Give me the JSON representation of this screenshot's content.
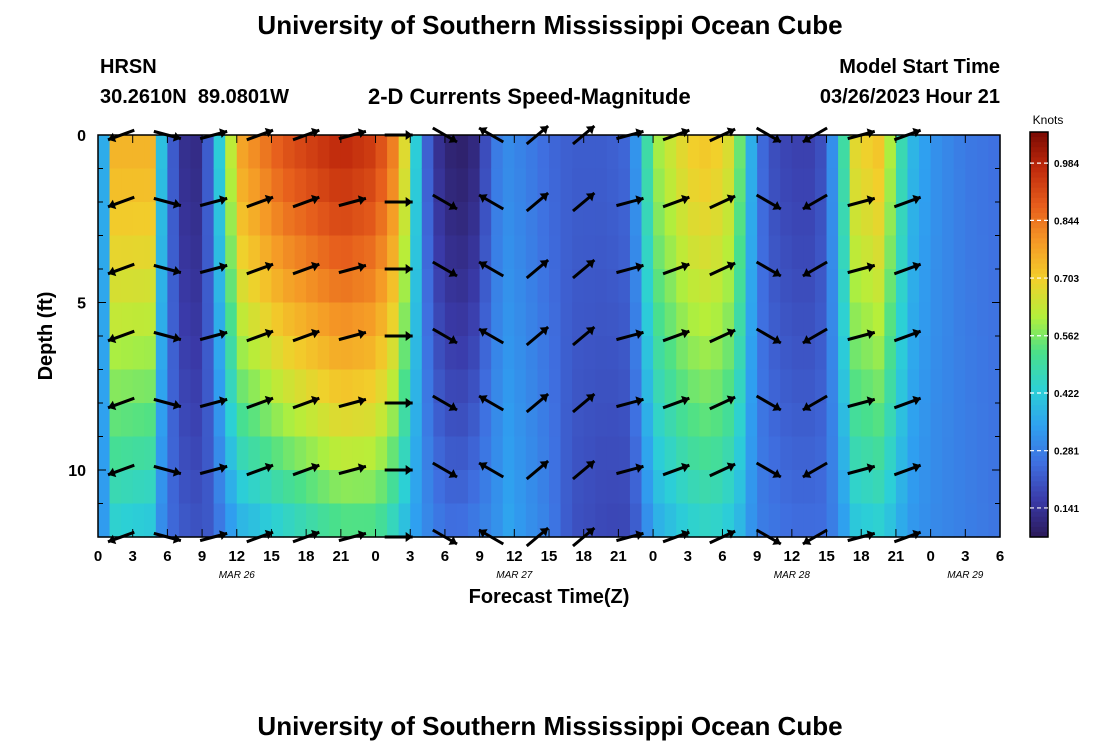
{
  "page_title": "University of Southern Mississippi Ocean Cube",
  "station": {
    "name": "HRSN",
    "coords": "30.2610N  89.0801W"
  },
  "chart_title": "2-D Currents Speed-Magnitude",
  "model_start": {
    "label": "Model Start Time",
    "value": "03/26/2023 Hour 21"
  },
  "footer_title": "University of Southern Mississippi Ocean Cube",
  "colors": {
    "colormap": [
      "#2b1a5a",
      "#3a3aa8",
      "#3f6fe0",
      "#2fa0f0",
      "#2cd0d6",
      "#4ae08a",
      "#b5ef3a",
      "#f2cf2b",
      "#f59a26",
      "#e65d1c",
      "#c02a0c",
      "#7a0a03"
    ]
  },
  "chart_data": {
    "type": "heatmap",
    "xlabel": "Forecast Time(Z)",
    "ylabel": "Depth (ft)",
    "x_tick_labels": [
      "0",
      "3",
      "6",
      "9",
      "12",
      "15",
      "18",
      "21",
      "0",
      "3",
      "6",
      "9",
      "12",
      "15",
      "18",
      "21",
      "0",
      "3",
      "6",
      "9",
      "12",
      "15",
      "18",
      "21",
      "0",
      "3",
      "6"
    ],
    "x_hours_range": [
      0,
      78
    ],
    "date_labels": [
      {
        "text": "MAR 26",
        "hour": 12
      },
      {
        "text": "MAR 27",
        "hour": 36
      },
      {
        "text": "MAR 28",
        "hour": 60
      },
      {
        "text": "MAR 29",
        "hour": 75
      }
    ],
    "y_ticks": [
      "0",
      "5",
      "10"
    ],
    "y_range": [
      0,
      12
    ],
    "colorbar": {
      "label": "Knots",
      "ticks": [
        "0.984",
        "0.844",
        "0.703",
        "0.562",
        "0.422",
        "0.281",
        "0.141"
      ],
      "range": [
        0.07,
        1.06
      ]
    },
    "speed_profile_surface": [
      [
        0,
        0.3
      ],
      [
        0.8,
        0.4
      ],
      [
        1.5,
        0.75
      ],
      [
        4.5,
        0.75
      ],
      [
        5.5,
        0.4
      ],
      [
        6.2,
        0.25
      ],
      [
        7,
        0.16
      ],
      [
        8,
        0.1
      ],
      [
        9,
        0.14
      ],
      [
        10,
        0.3
      ],
      [
        11,
        0.55
      ],
      [
        12.5,
        0.78
      ],
      [
        16,
        0.9
      ],
      [
        21,
        0.98
      ],
      [
        24,
        0.94
      ],
      [
        26,
        0.8
      ],
      [
        27,
        0.55
      ],
      [
        28,
        0.3
      ],
      [
        29,
        0.15
      ],
      [
        31,
        0.08
      ],
      [
        33,
        0.12
      ],
      [
        34,
        0.26
      ],
      [
        35.5,
        0.3
      ],
      [
        37,
        0.28
      ],
      [
        39,
        0.24
      ],
      [
        41,
        0.22
      ],
      [
        44,
        0.22
      ],
      [
        46,
        0.24
      ],
      [
        47,
        0.4
      ],
      [
        48,
        0.58
      ],
      [
        51,
        0.7
      ],
      [
        53,
        0.72
      ],
      [
        55,
        0.65
      ],
      [
        56,
        0.45
      ],
      [
        57,
        0.28
      ],
      [
        58,
        0.2
      ],
      [
        60,
        0.17
      ],
      [
        62,
        0.17
      ],
      [
        63,
        0.22
      ],
      [
        64,
        0.4
      ],
      [
        65.5,
        0.68
      ],
      [
        67.5,
        0.72
      ],
      [
        69,
        0.55
      ],
      [
        70,
        0.4
      ],
      [
        72,
        0.32
      ],
      [
        75,
        0.27
      ],
      [
        78,
        0.25
      ]
    ],
    "speed_profile_deep": [
      [
        0,
        0.28
      ],
      [
        0.8,
        0.36
      ],
      [
        1.5,
        0.42
      ],
      [
        4.5,
        0.4
      ],
      [
        5.5,
        0.3
      ],
      [
        6.2,
        0.25
      ],
      [
        7,
        0.22
      ],
      [
        9,
        0.2
      ],
      [
        10,
        0.22
      ],
      [
        11,
        0.3
      ],
      [
        12.5,
        0.36
      ],
      [
        16,
        0.42
      ],
      [
        21,
        0.5
      ],
      [
        24,
        0.5
      ],
      [
        26,
        0.42
      ],
      [
        27,
        0.35
      ],
      [
        28,
        0.32
      ],
      [
        29,
        0.28
      ],
      [
        31,
        0.25
      ],
      [
        34,
        0.3
      ],
      [
        35.5,
        0.35
      ],
      [
        37,
        0.32
      ],
      [
        39,
        0.28
      ],
      [
        41,
        0.2
      ],
      [
        44,
        0.18
      ],
      [
        46,
        0.18
      ],
      [
        47,
        0.25
      ],
      [
        48,
        0.35
      ],
      [
        51,
        0.42
      ],
      [
        53,
        0.44
      ],
      [
        55,
        0.4
      ],
      [
        56,
        0.35
      ],
      [
        57,
        0.28
      ],
      [
        60,
        0.25
      ],
      [
        63,
        0.25
      ],
      [
        64,
        0.3
      ],
      [
        65.5,
        0.4
      ],
      [
        67.5,
        0.42
      ],
      [
        69,
        0.38
      ],
      [
        70,
        0.33
      ],
      [
        72,
        0.3
      ],
      [
        75,
        0.28
      ],
      [
        78,
        0.26
      ]
    ],
    "vector_depths_ft": [
      0,
      2,
      4,
      6,
      8,
      10,
      12
    ],
    "vector_angles_deg_by_hour": [
      [
        2,
        200
      ],
      [
        6,
        345
      ],
      [
        10,
        15
      ],
      [
        14,
        20
      ],
      [
        18,
        20
      ],
      [
        22,
        15
      ],
      [
        26,
        0
      ],
      [
        30,
        330
      ],
      [
        34,
        150
      ],
      [
        38,
        40
      ],
      [
        42,
        40
      ],
      [
        46,
        15
      ],
      [
        50,
        20
      ],
      [
        54,
        25
      ],
      [
        58,
        330
      ],
      [
        62,
        210
      ],
      [
        66,
        15
      ],
      [
        70,
        20
      ]
    ]
  }
}
